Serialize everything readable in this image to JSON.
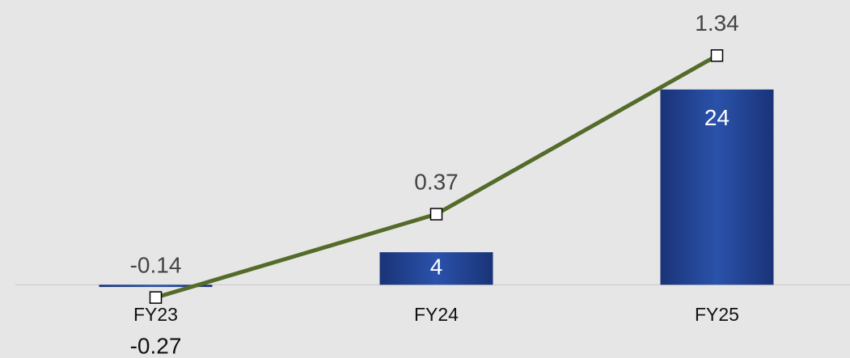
{
  "chart_data": {
    "type": "bar-line",
    "categories": [
      "FY23",
      "FY24",
      "FY25"
    ],
    "series": [
      {
        "type": "bar",
        "color": "#23469a",
        "values": [
          -0.27,
          4,
          24
        ]
      },
      {
        "type": "line",
        "axis": "y2",
        "color": "#546b2a",
        "values": [
          -0.14,
          0.37,
          1.34
        ]
      }
    ],
    "ylim": [
      -9,
      35
    ],
    "y2lim": [
      -0.51,
      1.68
    ]
  }
}
